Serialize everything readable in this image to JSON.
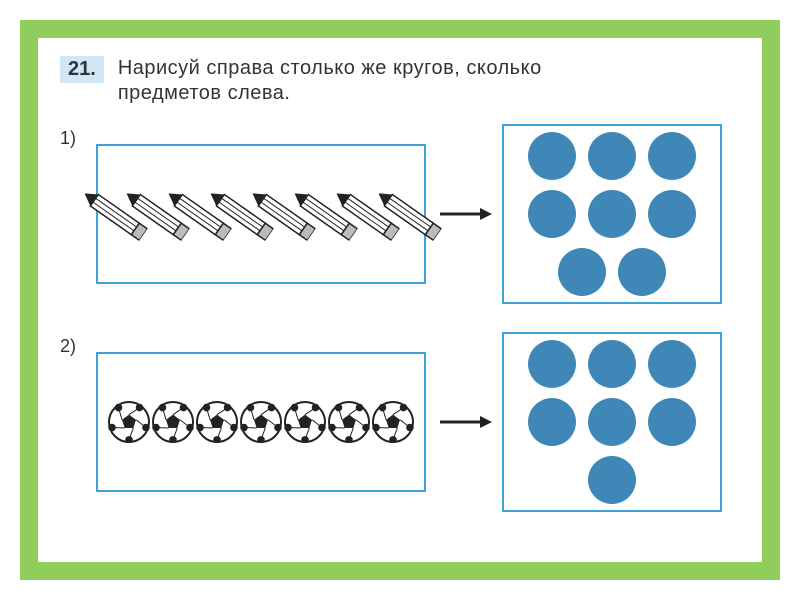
{
  "frame": {
    "border_color": "#8fce5a"
  },
  "question": {
    "number_label": "21.",
    "number_bg": "#cfe7f7",
    "instruction_lines": [
      "Нарисуй справа столько же кругов, сколько",
      "предметов слева."
    ],
    "text_color": "#333333"
  },
  "box_border_color": "#3aa3d9",
  "arrow": {
    "color": "#222222",
    "line_width": 3,
    "head_size": 10
  },
  "circle": {
    "fill": "#3f87b6",
    "diameter": 48
  },
  "exercises": [
    {
      "label": "1)",
      "items_type": "pencil",
      "item_count": 8,
      "pencil": {
        "rotation": 55,
        "body_fill": "#ffffff",
        "body_stroke": "#222222",
        "tip_fill": "#222222",
        "eraser_fill": "#bbbbbb",
        "width": 14,
        "height": 72
      },
      "answer_circle_count": 8
    },
    {
      "label": "2)",
      "items_type": "soccer_ball",
      "item_count": 7,
      "ball": {
        "diameter": 42,
        "fill": "#ffffff",
        "stroke": "#222222",
        "patch_fill": "#222222"
      },
      "answer_circle_count": 7
    }
  ]
}
